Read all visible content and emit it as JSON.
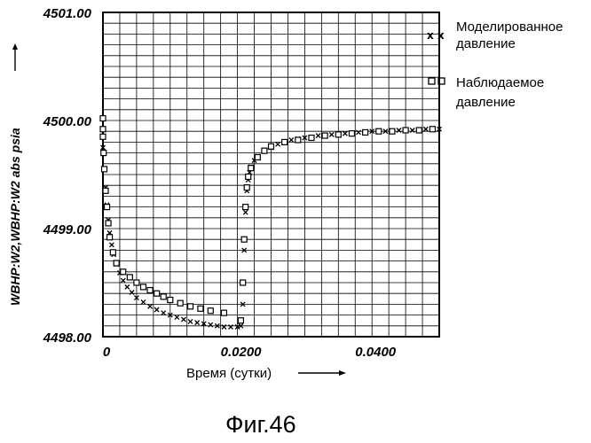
{
  "chart_data": {
    "type": "scatter",
    "xlabel": "Время (сутки)",
    "ylabel": "WBHP:W2,WBHP:W2  abs psia",
    "xlim": [
      0,
      0.05
    ],
    "ylim": [
      4498.0,
      4501.0
    ],
    "x_tick_labels": [
      "0",
      "0.0200",
      "0.0400"
    ],
    "x_tick_values": [
      0,
      0.02,
      0.04
    ],
    "y_tick_labels": [
      "4498.00",
      "4499.00",
      "4500.00",
      "4501.00"
    ],
    "y_tick_values": [
      4498.0,
      4499.0,
      4500.0,
      4501.0
    ],
    "grid": true,
    "legend_position": "right",
    "series": [
      {
        "name": "Моделированное давление",
        "marker": "x",
        "x": [
          0.0,
          0.0002,
          0.0004,
          0.0006,
          0.0008,
          0.001,
          0.0013,
          0.0016,
          0.002,
          0.0025,
          0.003,
          0.0036,
          0.0043,
          0.005,
          0.006,
          0.007,
          0.008,
          0.009,
          0.01,
          0.011,
          0.012,
          0.013,
          0.014,
          0.015,
          0.016,
          0.017,
          0.018,
          0.019,
          0.02,
          0.0205,
          0.0208,
          0.021,
          0.0212,
          0.0214,
          0.0216,
          0.0218,
          0.022,
          0.0225,
          0.023,
          0.024,
          0.025,
          0.026,
          0.027,
          0.028,
          0.029,
          0.03,
          0.032,
          0.034,
          0.036,
          0.038,
          0.04,
          0.042,
          0.044,
          0.046,
          0.048,
          0.05
        ],
        "y": [
          4499.75,
          4499.55,
          4499.38,
          4499.22,
          4499.08,
          4498.96,
          4498.85,
          4498.76,
          4498.67,
          4498.59,
          4498.52,
          4498.46,
          4498.41,
          4498.36,
          4498.32,
          4498.28,
          4498.25,
          4498.22,
          4498.2,
          4498.18,
          4498.16,
          4498.14,
          4498.13,
          4498.12,
          4498.11,
          4498.1,
          4498.09,
          4498.09,
          4498.09,
          4498.1,
          4498.3,
          4498.8,
          4499.15,
          4499.35,
          4499.45,
          4499.52,
          4499.57,
          4499.63,
          4499.67,
          4499.72,
          4499.75,
          4499.78,
          4499.8,
          4499.82,
          4499.83,
          4499.84,
          4499.86,
          4499.87,
          4499.88,
          4499.89,
          4499.9,
          4499.9,
          4499.91,
          4499.91,
          4499.92,
          4499.92
        ]
      },
      {
        "name": "Наблюдаемое давление",
        "marker": "square",
        "x": [
          0.0,
          0.0,
          0.0,
          0.0001,
          0.0002,
          0.0004,
          0.0006,
          0.0008,
          0.001,
          0.0015,
          0.002,
          0.003,
          0.004,
          0.005,
          0.006,
          0.007,
          0.008,
          0.009,
          0.01,
          0.0115,
          0.013,
          0.0145,
          0.016,
          0.018,
          0.0205,
          0.0208,
          0.021,
          0.0212,
          0.0214,
          0.0216,
          0.022,
          0.023,
          0.024,
          0.025,
          0.027,
          0.029,
          0.031,
          0.033,
          0.035,
          0.037,
          0.039,
          0.041,
          0.043,
          0.045,
          0.047,
          0.049
        ],
        "y": [
          4500.02,
          4499.92,
          4499.85,
          4499.7,
          4499.55,
          4499.35,
          4499.2,
          4499.05,
          4498.92,
          4498.78,
          4498.68,
          4498.6,
          4498.55,
          4498.5,
          4498.46,
          4498.43,
          4498.4,
          4498.37,
          4498.34,
          4498.31,
          4498.28,
          4498.26,
          4498.24,
          4498.22,
          4498.15,
          4498.5,
          4498.9,
          4499.2,
          4499.38,
          4499.48,
          4499.56,
          4499.66,
          4499.72,
          4499.76,
          4499.8,
          4499.82,
          4499.84,
          4499.86,
          4499.87,
          4499.88,
          4499.89,
          4499.9,
          4499.9,
          4499.91,
          4499.91,
          4499.92
        ]
      }
    ]
  },
  "legend": [
    {
      "symbol": "x",
      "label_line1": "Моделированное",
      "label_line2": "давление"
    },
    {
      "symbol": "square",
      "label_line1": "Наблюдаемое",
      "label_line2": "давление"
    }
  ],
  "caption": "Фиг.46"
}
